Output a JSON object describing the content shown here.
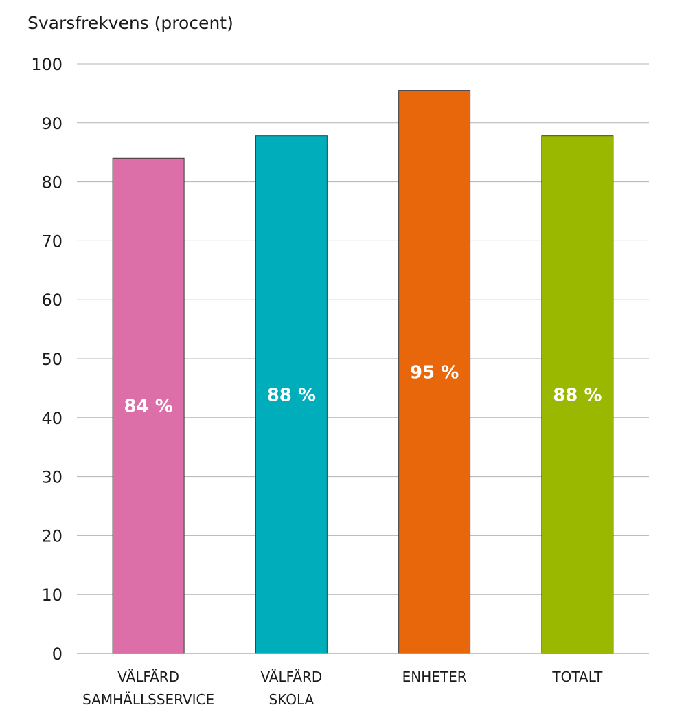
{
  "chart_data": {
    "type": "bar",
    "ylabel": "Svarsfrekvens (procent)",
    "ylim": [
      0,
      100
    ],
    "yticks": [
      0,
      10,
      20,
      30,
      40,
      50,
      60,
      70,
      80,
      90,
      100
    ],
    "grid": true,
    "categories": [
      [
        "VÄLFÄRD",
        "SAMHÄLLSSERVICE"
      ],
      [
        "VÄLFÄRD",
        "SKOLA"
      ],
      [
        "ENHETER"
      ],
      [
        "TOTALT"
      ]
    ],
    "values": [
      84,
      87.8,
      95.5,
      87.8
    ],
    "data_labels": [
      "84 %",
      "88 %",
      "95 %",
      "88 %"
    ],
    "colors": [
      "#dc6fa8",
      "#00adbb",
      "#e8670a",
      "#9ab800"
    ]
  }
}
